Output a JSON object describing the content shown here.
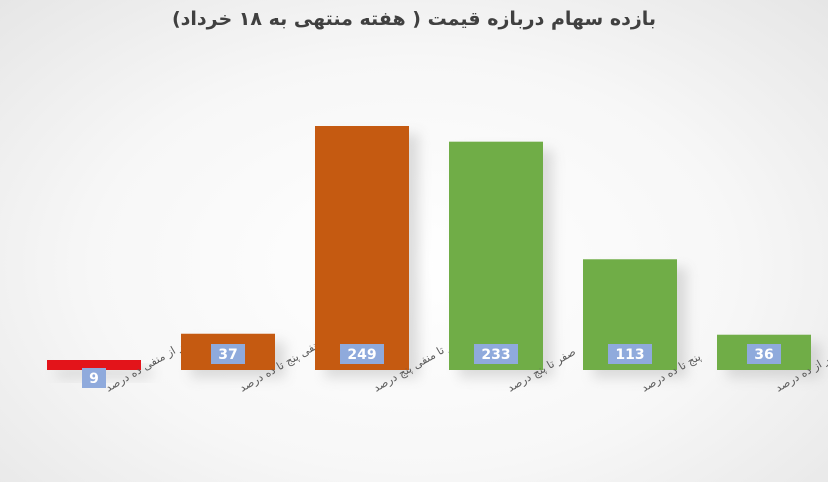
{
  "chart_data": {
    "type": "bar",
    "title": "بازده سهام دربازه قیمت ( هفته منتهی به ۱۸ خرداد)",
    "categories": [
      "بالاتر از منفی ده درصد",
      "منفی پنج تا ده درصد",
      "صفر تا منفی پنج درصد",
      "صفر تا پنج درصد",
      "پنج تا ده درصد",
      "بالاتر از ده درصد"
    ],
    "values": [
      9,
      37,
      249,
      233,
      113,
      36
    ],
    "colors": [
      "#e3141a",
      "#c55a11",
      "#c55a11",
      "#70ad47",
      "#70ad47",
      "#70ad47"
    ],
    "label_box_color": "#8faadc",
    "ylim": [
      0,
      260
    ],
    "grid": false,
    "legend": "none"
  }
}
